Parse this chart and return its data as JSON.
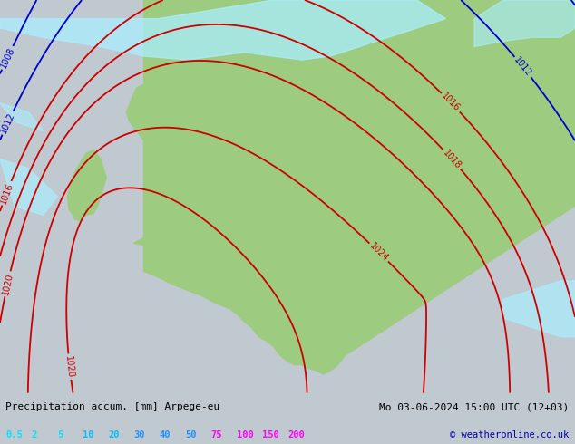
{
  "title_left": "Precipitation accum. [mm] Arpege-eu",
  "title_right": "Mo 03-06-2024 15:00 UTC (12+03)",
  "copyright": "© weatheronline.co.uk",
  "legend_values": [
    "0.5",
    "2",
    "5",
    "10",
    "20",
    "30",
    "40",
    "50",
    "75",
    "100",
    "150",
    "200"
  ],
  "legend_colors": [
    "#00e5ff",
    "#00e5ff",
    "#00e5ff",
    "#00bfff",
    "#00bfff",
    "#1e90ff",
    "#1e90ff",
    "#1e90ff",
    "#ff00ff",
    "#ff00ff",
    "#ff00ff",
    "#ff00ff"
  ],
  "bg_ocean_color": "#c8d4dc",
  "land_color": "#9dcc80",
  "precip_light_color": "#aaeeff",
  "isobar_color_blue": "#0000cc",
  "isobar_color_red": "#cc0000",
  "font_size_title": 8,
  "font_size_isobar": 7,
  "xlim": [
    -15,
    25
  ],
  "ylim": [
    42,
    63
  ]
}
